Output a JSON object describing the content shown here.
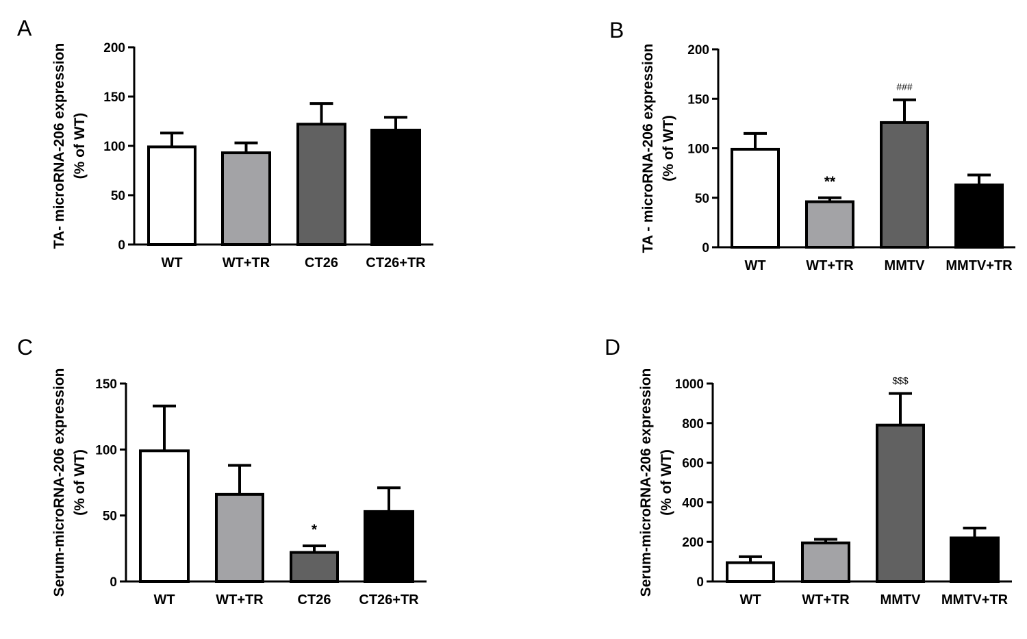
{
  "chart_data": [
    {
      "panel": "A",
      "type": "bar",
      "categories": [
        "WT",
        "WT+TR",
        "CT26",
        "CT26+TR"
      ],
      "values": [
        99,
        93,
        122,
        116
      ],
      "errors": [
        14,
        10,
        21,
        13
      ],
      "colors": [
        "#ffffff",
        "#a3a3a6",
        "#616161",
        "#000000"
      ],
      "ylabel_lines": [
        "TA- microRNA-206 expression",
        "(%  of WT)"
      ],
      "ylim": [
        0,
        200
      ],
      "yticks": [
        0,
        50,
        100,
        150,
        200
      ],
      "annotations": [
        "",
        "",
        "",
        ""
      ]
    },
    {
      "panel": "B",
      "type": "bar",
      "categories": [
        "WT",
        "WT+TR",
        "MMTV",
        "MMTV+TR"
      ],
      "values": [
        99,
        46,
        126,
        63
      ],
      "errors": [
        16,
        4,
        23,
        10
      ],
      "colors": [
        "#ffffff",
        "#a3a3a6",
        "#616161",
        "#000000"
      ],
      "ylabel_lines": [
        "TA - microRNA-206 expression",
        "(%  of WT)"
      ],
      "ylim": [
        0,
        200
      ],
      "yticks": [
        0,
        50,
        100,
        150,
        200
      ],
      "annotations": [
        "",
        "**",
        "###",
        ""
      ]
    },
    {
      "panel": "C",
      "type": "bar",
      "categories": [
        "WT",
        "WT+TR",
        "CT26",
        "CT26+TR"
      ],
      "values": [
        99,
        66,
        22,
        53
      ],
      "errors": [
        34,
        22,
        5,
        18
      ],
      "colors": [
        "#ffffff",
        "#a3a3a6",
        "#616161",
        "#000000"
      ],
      "ylabel_lines": [
        "Serum-microRNA-206 expression",
        "(%  of WT)"
      ],
      "ylim": [
        0,
        150
      ],
      "yticks": [
        0,
        50,
        100,
        150
      ],
      "annotations": [
        "",
        "",
        "*",
        ""
      ]
    },
    {
      "panel": "D",
      "type": "bar",
      "categories": [
        "WT",
        "WT+TR",
        "MMTV",
        "MMTV+TR"
      ],
      "values": [
        95,
        195,
        790,
        220
      ],
      "errors": [
        30,
        18,
        160,
        50
      ],
      "colors": [
        "#ffffff",
        "#a3a3a6",
        "#616161",
        "#000000"
      ],
      "ylabel_lines": [
        "Serum-microRNA-206 expression",
        "(%  of WT)"
      ],
      "ylim": [
        0,
        1000
      ],
      "yticks": [
        0,
        200,
        400,
        600,
        800,
        1000
      ],
      "annotations": [
        "",
        "",
        "$$$",
        ""
      ]
    }
  ]
}
